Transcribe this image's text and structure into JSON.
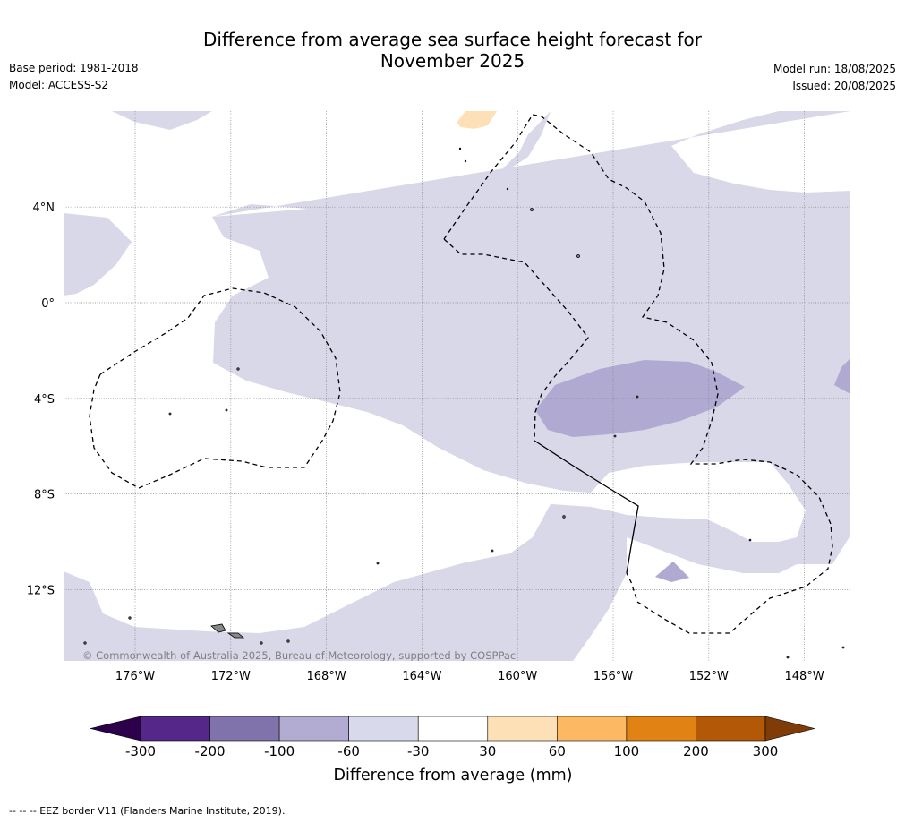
{
  "title_line1": "Difference from average sea surface height forecast for",
  "title_line2": "November 2025",
  "meta_left": [
    "Base period: 1981-2018",
    "Model: ACCESS-S2"
  ],
  "meta_right": [
    "Model run: 18/08/2025",
    "Issued: 20/08/2025"
  ],
  "copyright": "© Commonwealth of Australia 2025, Bureau of Meteorology, supported by COSPPac",
  "map": {
    "lat_labels": [
      {
        "lat": 4,
        "label": "4°N"
      },
      {
        "lat": 0,
        "label": "0°"
      },
      {
        "lat": -4,
        "label": "4°S"
      },
      {
        "lat": -8,
        "label": "8°S"
      },
      {
        "lat": -12,
        "label": "12°S"
      }
    ],
    "lon_labels": [
      {
        "lon": -176,
        "label": "176°W"
      },
      {
        "lon": -172,
        "label": "172°W"
      },
      {
        "lon": -168,
        "label": "168°W"
      },
      {
        "lon": -164,
        "label": "164°W"
      },
      {
        "lon": -160,
        "label": "160°W"
      },
      {
        "lon": -156,
        "label": "156°W"
      },
      {
        "lon": -152,
        "label": "152°W"
      },
      {
        "lon": -148,
        "label": "148°W"
      }
    ],
    "colors": {
      "light_purple": "#d8d8e9",
      "mid_purple": "#b0aad2",
      "light_orange": "#fee0b6"
    }
  },
  "legend": {
    "title": "Difference from average (mm)",
    "ticks": [
      "-300",
      "-200",
      "-100",
      "-60",
      "-30",
      "30",
      "60",
      "100",
      "200",
      "300"
    ],
    "colors": [
      "#2d004b",
      "#542788",
      "#8073ac",
      "#b2abd2",
      "#d8daeb",
      "#ffffff",
      "#fee0b6",
      "#fdb863",
      "#e08214",
      "#b35806",
      "#7f3b08"
    ]
  },
  "footnote": "--  --  -- EEZ border V11 (Flanders Marine Institute, 2019)."
}
